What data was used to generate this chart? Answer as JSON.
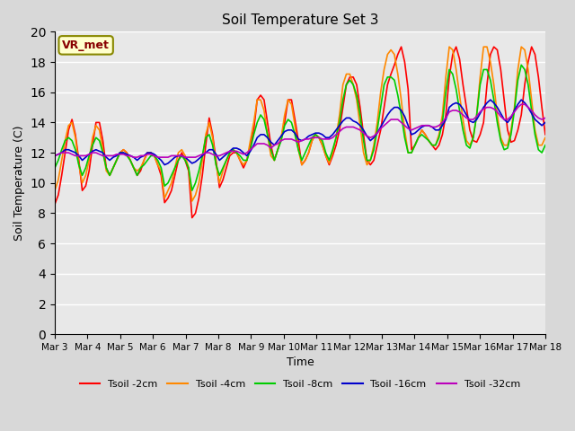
{
  "title": "Soil Temperature Set 3",
  "xlabel": "Time",
  "ylabel": "Soil Temperature (C)",
  "ylim": [
    0,
    20
  ],
  "yticks": [
    0,
    2,
    4,
    6,
    8,
    10,
    12,
    14,
    16,
    18,
    20
  ],
  "background_color": "#d8d8d8",
  "plot_bg_color": "#e8e8e8",
  "annotation_text": "VR_met",
  "annotation_bg": "#ffffcc",
  "annotation_border": "#888800",
  "annotation_text_color": "#880000",
  "series": {
    "Tsoil -2cm": {
      "color": "#ff0000",
      "lw": 1.2
    },
    "Tsoil -4cm": {
      "color": "#ff8800",
      "lw": 1.2
    },
    "Tsoil -8cm": {
      "color": "#00cc00",
      "lw": 1.2
    },
    "Tsoil -16cm": {
      "color": "#0000cc",
      "lw": 1.2
    },
    "Tsoil -32cm": {
      "color": "#bb00bb",
      "lw": 1.2
    }
  },
  "xtick_labels": [
    "Mar 3",
    "Mar 4",
    "Mar 5",
    "Mar 6",
    "Mar 7",
    "Mar 8",
    "Mar 9",
    "Mar 10",
    "Mar 11",
    "Mar 12",
    "Mar 13",
    "Mar 14",
    "Mar 15",
    "Mar 16",
    "Mar 17",
    "Mar 18"
  ],
  "n_days": 15,
  "data": {
    "Tsoil -2cm": [
      8.6,
      9.2,
      10.5,
      12.0,
      13.5,
      14.2,
      13.2,
      11.5,
      9.5,
      9.8,
      10.8,
      12.5,
      14.0,
      14.0,
      12.8,
      11.0,
      10.5,
      11.0,
      11.5,
      12.0,
      12.2,
      12.0,
      11.5,
      11.0,
      10.5,
      10.8,
      11.5,
      12.0,
      12.0,
      11.8,
      11.2,
      10.5,
      8.7,
      9.0,
      9.5,
      10.5,
      11.5,
      12.0,
      11.5,
      10.8,
      7.7,
      8.0,
      9.0,
      10.5,
      12.5,
      14.3,
      13.2,
      11.5,
      9.7,
      10.2,
      11.0,
      11.8,
      12.0,
      12.0,
      11.5,
      11.0,
      11.5,
      12.5,
      13.5,
      15.5,
      15.8,
      15.5,
      14.0,
      12.5,
      11.5,
      12.2,
      13.0,
      14.0,
      15.5,
      15.5,
      14.2,
      12.8,
      11.2,
      11.5,
      12.0,
      12.8,
      13.2,
      13.0,
      12.5,
      11.8,
      11.2,
      11.8,
      12.5,
      13.5,
      15.0,
      16.5,
      17.0,
      17.0,
      16.5,
      15.0,
      13.2,
      11.5,
      11.2,
      11.5,
      12.5,
      13.5,
      15.0,
      16.5,
      17.2,
      17.8,
      18.5,
      19.0,
      18.0,
      16.2,
      12.2,
      12.5,
      13.0,
      13.5,
      13.2,
      12.8,
      12.5,
      12.2,
      12.5,
      13.2,
      14.5,
      17.0,
      18.5,
      19.0,
      18.2,
      16.5,
      15.0,
      13.5,
      12.8,
      12.7,
      13.2,
      14.0,
      16.5,
      18.5,
      19.0,
      18.8,
      17.5,
      15.5,
      13.5,
      12.7,
      12.8,
      13.5,
      14.5,
      16.5,
      18.0,
      19.0,
      18.5,
      17.0,
      15.0,
      13.2
    ],
    "Tsoil -4cm": [
      9.5,
      10.2,
      11.5,
      12.8,
      13.8,
      14.0,
      13.0,
      11.2,
      10.0,
      10.5,
      11.5,
      13.0,
      13.8,
      13.5,
      12.2,
      10.8,
      10.5,
      11.0,
      11.5,
      12.0,
      12.2,
      12.0,
      11.5,
      11.0,
      10.8,
      11.0,
      11.5,
      12.0,
      12.0,
      11.8,
      11.2,
      10.8,
      9.0,
      9.5,
      10.0,
      11.0,
      12.0,
      12.2,
      11.8,
      11.0,
      8.8,
      9.2,
      10.0,
      11.5,
      13.2,
      14.0,
      13.0,
      11.2,
      10.0,
      10.8,
      11.5,
      12.0,
      12.2,
      12.0,
      11.5,
      11.2,
      11.5,
      12.8,
      14.0,
      15.5,
      15.5,
      14.8,
      13.2,
      11.8,
      11.5,
      12.2,
      13.0,
      14.5,
      15.5,
      15.2,
      13.8,
      12.2,
      11.2,
      11.5,
      12.0,
      12.8,
      13.2,
      13.0,
      12.5,
      11.8,
      11.3,
      12.0,
      13.0,
      14.5,
      16.5,
      17.2,
      17.2,
      16.5,
      15.5,
      13.8,
      12.0,
      11.2,
      11.5,
      12.5,
      14.0,
      16.0,
      17.5,
      18.5,
      18.8,
      18.5,
      17.2,
      15.5,
      13.5,
      12.0,
      12.0,
      12.5,
      13.0,
      13.5,
      13.2,
      12.8,
      12.5,
      12.5,
      13.2,
      14.5,
      17.0,
      19.0,
      18.8,
      17.5,
      15.8,
      14.2,
      12.8,
      12.5,
      13.0,
      14.5,
      17.0,
      19.0,
      19.0,
      18.0,
      16.5,
      14.5,
      13.0,
      12.5,
      12.5,
      13.5,
      15.0,
      17.5,
      19.0,
      18.8,
      17.5,
      15.5,
      13.5,
      12.5,
      12.5,
      13.0
    ],
    "Tsoil -8cm": [
      11.0,
      11.5,
      12.2,
      12.8,
      13.0,
      12.8,
      12.2,
      11.2,
      10.5,
      11.0,
      11.8,
      12.5,
      13.0,
      12.8,
      12.0,
      11.0,
      10.5,
      11.0,
      11.5,
      12.0,
      12.0,
      11.8,
      11.5,
      11.0,
      10.5,
      11.0,
      11.2,
      11.5,
      11.8,
      11.8,
      11.5,
      11.0,
      9.8,
      10.0,
      10.5,
      11.0,
      11.5,
      11.8,
      11.5,
      11.0,
      9.5,
      10.0,
      10.8,
      11.8,
      13.0,
      13.2,
      12.5,
      11.2,
      10.5,
      11.0,
      11.5,
      12.0,
      12.2,
      12.0,
      11.8,
      11.5,
      11.5,
      12.2,
      13.2,
      14.0,
      14.5,
      14.2,
      13.2,
      12.2,
      11.5,
      12.2,
      12.8,
      13.8,
      14.2,
      14.0,
      13.2,
      12.2,
      11.5,
      12.0,
      12.5,
      13.0,
      13.2,
      13.0,
      12.8,
      12.0,
      11.5,
      12.2,
      13.0,
      14.0,
      15.5,
      16.5,
      16.8,
      16.5,
      15.8,
      14.5,
      12.8,
      11.5,
      11.5,
      12.2,
      13.5,
      15.0,
      16.5,
      17.0,
      17.0,
      16.8,
      15.8,
      14.5,
      13.0,
      12.0,
      12.0,
      12.5,
      13.0,
      13.2,
      13.0,
      12.8,
      12.5,
      12.5,
      13.0,
      14.0,
      16.0,
      17.5,
      17.2,
      16.2,
      14.8,
      13.5,
      12.5,
      12.3,
      13.0,
      14.5,
      16.5,
      17.5,
      17.5,
      16.8,
      15.5,
      14.0,
      12.8,
      12.2,
      12.3,
      13.2,
      14.8,
      16.8,
      17.8,
      17.5,
      16.5,
      14.8,
      13.2,
      12.2,
      12.0,
      12.5
    ],
    "Tsoil -16cm": [
      11.8,
      11.9,
      12.0,
      12.2,
      12.2,
      12.1,
      12.0,
      11.8,
      11.5,
      11.7,
      11.9,
      12.1,
      12.2,
      12.1,
      12.0,
      11.7,
      11.5,
      11.7,
      11.8,
      12.0,
      12.0,
      11.9,
      11.8,
      11.7,
      11.5,
      11.7,
      11.8,
      12.0,
      12.0,
      11.9,
      11.7,
      11.5,
      11.2,
      11.3,
      11.5,
      11.7,
      11.8,
      11.8,
      11.7,
      11.5,
      11.3,
      11.4,
      11.6,
      11.8,
      12.0,
      12.2,
      12.2,
      11.9,
      11.5,
      11.7,
      11.9,
      12.1,
      12.3,
      12.3,
      12.2,
      12.0,
      11.8,
      12.1,
      12.5,
      13.0,
      13.2,
      13.2,
      13.0,
      12.7,
      12.5,
      12.8,
      13.1,
      13.4,
      13.5,
      13.5,
      13.3,
      12.9,
      12.8,
      12.9,
      13.1,
      13.2,
      13.3,
      13.3,
      13.2,
      13.0,
      13.0,
      13.2,
      13.5,
      13.8,
      14.1,
      14.3,
      14.3,
      14.1,
      14.0,
      13.8,
      13.5,
      13.1,
      12.8,
      13.0,
      13.3,
      13.7,
      14.1,
      14.5,
      14.8,
      15.0,
      15.0,
      14.8,
      14.4,
      13.8,
      13.2,
      13.3,
      13.5,
      13.7,
      13.8,
      13.8,
      13.7,
      13.5,
      13.5,
      13.8,
      14.2,
      15.0,
      15.2,
      15.3,
      15.2,
      14.9,
      14.5,
      14.1,
      14.0,
      14.2,
      14.6,
      15.0,
      15.3,
      15.5,
      15.3,
      15.0,
      14.6,
      14.2,
      14.0,
      14.3,
      14.8,
      15.2,
      15.5,
      15.3,
      15.0,
      14.6,
      14.2,
      14.0,
      13.8,
      14.0
    ],
    "Tsoil -32cm": [
      11.8,
      11.9,
      12.0,
      12.0,
      12.0,
      11.9,
      11.8,
      11.8,
      11.8,
      11.8,
      11.9,
      12.0,
      12.0,
      11.9,
      11.8,
      11.8,
      11.8,
      11.8,
      11.9,
      11.9,
      11.9,
      11.8,
      11.8,
      11.7,
      11.7,
      11.8,
      11.8,
      11.9,
      11.9,
      11.8,
      11.7,
      11.7,
      11.7,
      11.7,
      11.8,
      11.8,
      11.8,
      11.8,
      11.7,
      11.7,
      11.7,
      11.7,
      11.8,
      11.9,
      12.0,
      12.0,
      11.9,
      11.8,
      11.8,
      11.9,
      12.0,
      12.1,
      12.1,
      12.1,
      12.0,
      11.9,
      12.0,
      12.2,
      12.4,
      12.6,
      12.6,
      12.6,
      12.5,
      12.3,
      12.5,
      12.6,
      12.8,
      12.9,
      12.9,
      12.9,
      12.8,
      12.7,
      12.8,
      12.9,
      12.9,
      13.0,
      13.0,
      13.0,
      12.9,
      12.9,
      12.9,
      13.0,
      13.2,
      13.4,
      13.6,
      13.7,
      13.7,
      13.7,
      13.6,
      13.5,
      13.3,
      13.1,
      13.0,
      13.1,
      13.3,
      13.6,
      13.8,
      14.0,
      14.2,
      14.2,
      14.2,
      14.0,
      13.8,
      13.6,
      13.5,
      13.6,
      13.7,
      13.8,
      13.8,
      13.8,
      13.7,
      13.7,
      13.8,
      14.0,
      14.3,
      14.7,
      14.8,
      14.8,
      14.7,
      14.5,
      14.3,
      14.2,
      14.2,
      14.4,
      14.7,
      14.9,
      15.0,
      15.0,
      14.9,
      14.7,
      14.4,
      14.2,
      14.2,
      14.4,
      14.7,
      15.0,
      15.2,
      15.2,
      15.0,
      14.8,
      14.5,
      14.3,
      14.2,
      14.3
    ]
  }
}
